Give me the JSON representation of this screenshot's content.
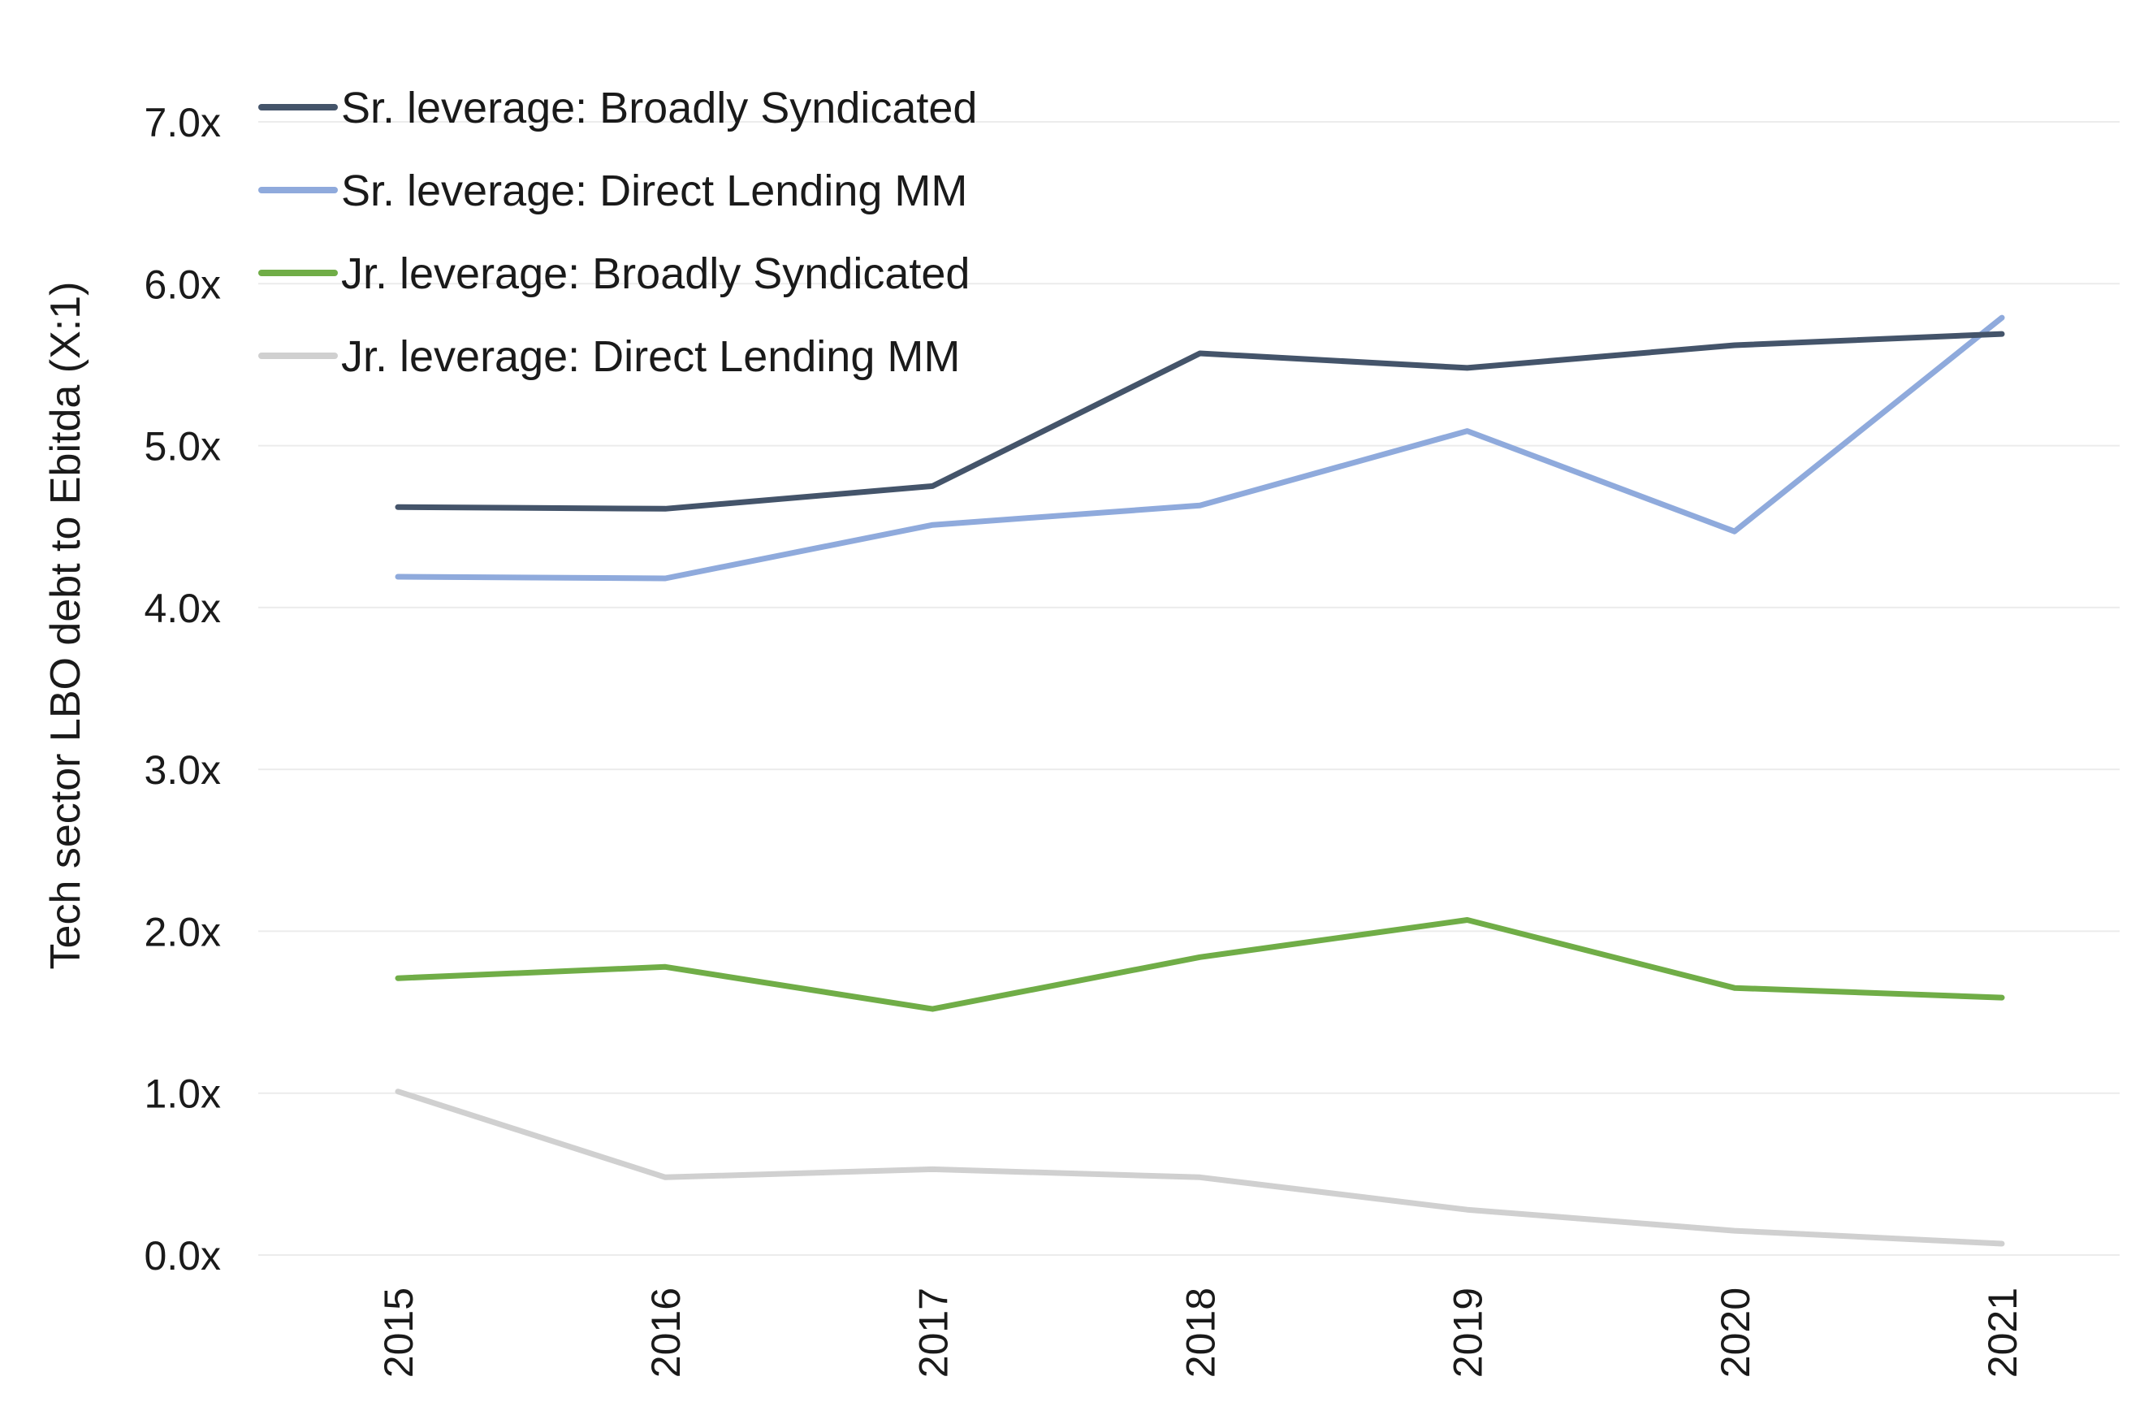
{
  "chart_data": {
    "type": "line",
    "title": "",
    "xlabel": "",
    "ylabel": "Tech sector LBO debt to Ebitda (X:1)",
    "x": [
      "2015",
      "2016",
      "2017",
      "2018",
      "2019",
      "2020",
      "2021"
    ],
    "ylim": [
      0,
      7
    ],
    "yticks": [
      "0.0x",
      "1.0x",
      "2.0x",
      "3.0x",
      "4.0x",
      "5.0x",
      "6.0x",
      "7.0x"
    ],
    "grid": true,
    "legend_position": "top-left",
    "series": [
      {
        "name": "Sr. leverage: Broadly Syndicated",
        "color": "#44546a",
        "values": [
          4.62,
          4.61,
          4.75,
          5.57,
          5.48,
          5.62,
          5.69
        ]
      },
      {
        "name": "Sr. leverage: Direct Lending MM",
        "color": "#8faadc",
        "values": [
          4.19,
          4.18,
          4.51,
          4.63,
          5.09,
          4.47,
          5.79
        ]
      },
      {
        "name": "Jr. leverage: Broadly Syndicated",
        "color": "#70ad47",
        "values": [
          1.71,
          1.78,
          1.52,
          1.84,
          2.07,
          1.65,
          1.59
        ]
      },
      {
        "name": "Jr. leverage: Direct Lending MM",
        "color": "#d0d0d0",
        "values": [
          1.01,
          0.48,
          0.53,
          0.48,
          0.28,
          0.15,
          0.07
        ]
      }
    ]
  }
}
